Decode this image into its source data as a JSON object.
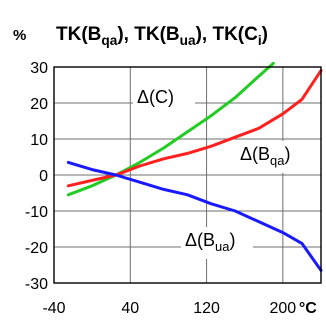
{
  "chart_data": {
    "type": "line",
    "title": "TK(Bqa), TK(Bua), TK(Ci)",
    "title_parts": [
      {
        "text": "TK(B"
      },
      {
        "text": "qa",
        "sub": true
      },
      {
        "text": "), TK(B"
      },
      {
        "text": "ua",
        "sub": true
      },
      {
        "text": "), TK(C"
      },
      {
        "text": "i",
        "sub": true
      },
      {
        "text": ")"
      }
    ],
    "ylabel": "%",
    "xlabel_unit": "°C",
    "xlim": [
      -40,
      240
    ],
    "ylim": [
      -30,
      30
    ],
    "x_ticks": [
      -40,
      40,
      120,
      200
    ],
    "x_tick_labels": [
      "-40",
      "40",
      "120",
      "200"
    ],
    "y_ticks": [
      30,
      20,
      10,
      0,
      -10,
      -20,
      -30
    ],
    "y_tick_labels": [
      "30",
      "20",
      "10",
      "0",
      "-10",
      "-20",
      "-30"
    ],
    "grid": true,
    "series": [
      {
        "name": "Δ(C)",
        "color": "#22cc22",
        "label_parts": [
          {
            "text": "Δ(C)"
          }
        ],
        "x": [
          -25,
          0,
          25,
          50,
          75,
          100,
          125,
          150,
          175,
          190
        ],
        "y": [
          -5.5,
          -3,
          0,
          3.5,
          7.5,
          12,
          16.5,
          21.5,
          27.5,
          31
        ]
      },
      {
        "name": "Δ(Bqa)",
        "color": "#ff2020",
        "label_parts": [
          {
            "text": "Δ(B"
          },
          {
            "text": "qa",
            "sub": true
          },
          {
            "text": ")"
          }
        ],
        "x": [
          -25,
          0,
          25,
          50,
          75,
          100,
          125,
          150,
          175,
          200,
          220,
          240
        ],
        "y": [
          -3,
          -1.5,
          0,
          2.5,
          4.5,
          6,
          8,
          10.5,
          13,
          17,
          21,
          29
        ]
      },
      {
        "name": "Δ(Bua)",
        "color": "#1a1aff",
        "label_parts": [
          {
            "text": "Δ(B"
          },
          {
            "text": "ua",
            "sub": true
          },
          {
            "text": ")"
          }
        ],
        "x": [
          -25,
          0,
          25,
          50,
          75,
          100,
          125,
          150,
          175,
          200,
          220,
          240
        ],
        "y": [
          3.5,
          1.5,
          0,
          -2,
          -4,
          -5.5,
          -8,
          -10,
          -13,
          -16,
          -19,
          -26.5
        ]
      }
    ]
  }
}
